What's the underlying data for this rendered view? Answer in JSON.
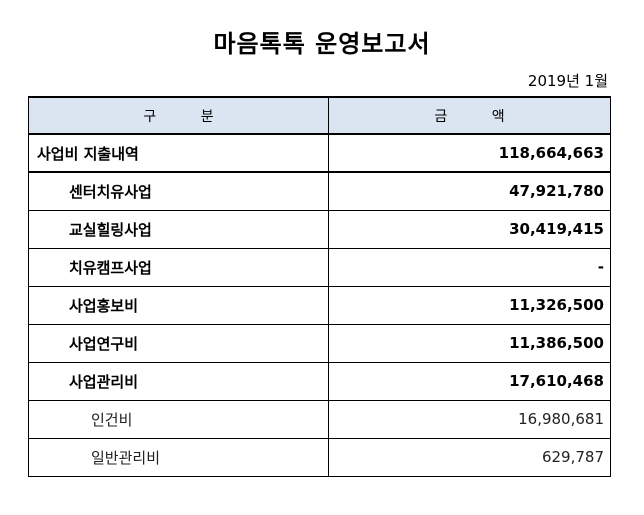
{
  "title": "마음톡톡 운영보고서",
  "date": "2019년 1월",
  "table": {
    "headers": [
      "구          분",
      "금          액"
    ],
    "rows": [
      {
        "label": "사업비 지출내역",
        "amount": "118,664,663",
        "level": 0
      },
      {
        "label": "센터치유사업",
        "amount": "47,921,780",
        "level": 1
      },
      {
        "label": "교실힐링사업",
        "amount": "30,419,415",
        "level": 1
      },
      {
        "label": "치유캠프사업",
        "amount": "-",
        "level": 1
      },
      {
        "label": "사업홍보비",
        "amount": "11,326,500",
        "level": 1
      },
      {
        "label": "사업연구비",
        "amount": "11,386,500",
        "level": 1
      },
      {
        "label": "사업관리비",
        "amount": "17,610,468",
        "level": 1
      },
      {
        "label": "인건비",
        "amount": "16,980,681",
        "level": 2
      },
      {
        "label": "일반관리비",
        "amount": "629,787",
        "level": 2
      }
    ]
  }
}
